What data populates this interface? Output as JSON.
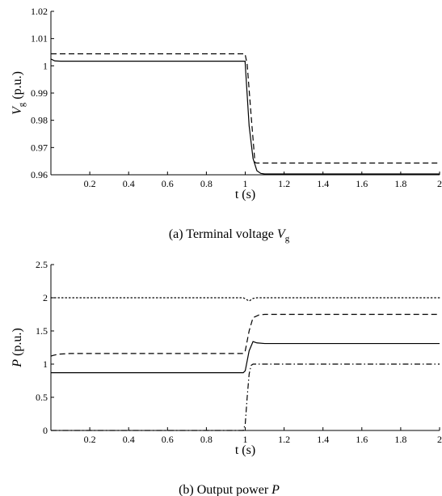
{
  "chart_data": [
    {
      "type": "line",
      "caption_prefix": "(a) Terminal voltage ",
      "caption_symbol": "V",
      "caption_sub": "g",
      "xlabel": "t (s)",
      "ylabel_symbol": "V",
      "ylabel_sub": "g",
      "ylabel_unit": " (p.u.)",
      "xlim": [
        0,
        2
      ],
      "ylim": [
        0.96,
        1.02
      ],
      "xticks": [
        0.2,
        0.4,
        0.6,
        0.8,
        1,
        1.2,
        1.4,
        1.6,
        1.8,
        2
      ],
      "xtick_labels": [
        "0.2",
        "0.4",
        "0.6",
        "0.8",
        "1",
        "1.2",
        "1.4",
        "1.6",
        "1.8",
        "2"
      ],
      "yticks": [
        0.96,
        0.97,
        0.98,
        0.99,
        1,
        1.01,
        1.02
      ],
      "ytick_labels": [
        "0.96",
        "0.97",
        "0.98",
        "0.99",
        "1",
        "1.01",
        "1.02"
      ],
      "series": [
        {
          "style": "solid",
          "x": [
            0,
            0.02,
            0.05,
            0.1,
            0.5,
            0.999,
            1.02,
            1.04,
            1.06,
            1.08,
            1.1,
            1.2,
            2
          ],
          "y": [
            1.0025,
            1.0018,
            1.0017,
            1.0017,
            1.0017,
            1.0017,
            0.978,
            0.966,
            0.9615,
            0.9605,
            0.9603,
            0.9603,
            0.9603
          ]
        },
        {
          "style": "dashed",
          "x": [
            0,
            0.5,
            0.999,
            1.01,
            1.03,
            1.05,
            1.06,
            1.1,
            2
          ],
          "y": [
            1.0044,
            1.0044,
            1.0044,
            1.0005,
            0.982,
            0.9645,
            0.9643,
            0.9643,
            0.9643
          ]
        }
      ]
    },
    {
      "type": "line",
      "caption_prefix": "(b) Output power ",
      "caption_symbol": "P",
      "caption_sub": "",
      "xlabel": "t (s)",
      "ylabel_symbol": "P",
      "ylabel_sub": "",
      "ylabel_unit": " (p.u.)",
      "xlim": [
        0,
        2
      ],
      "ylim": [
        0,
        2.5
      ],
      "xticks": [
        0.2,
        0.4,
        0.6,
        0.8,
        1,
        1.2,
        1.4,
        1.6,
        1.8,
        2
      ],
      "xtick_labels": [
        "0.2",
        "0.4",
        "0.6",
        "0.8",
        "1",
        "1.2",
        "1.4",
        "1.6",
        "1.8",
        "2"
      ],
      "yticks": [
        0,
        0.5,
        1,
        1.5,
        2,
        2.5
      ],
      "ytick_labels": [
        "0",
        "0.5",
        "1",
        "1.5",
        "2",
        "2.5"
      ],
      "series": [
        {
          "style": "dotted",
          "x": [
            0,
            0.99,
            1.0,
            1.02,
            1.04,
            1.06,
            2
          ],
          "y": [
            2.0,
            2.0,
            1.985,
            1.95,
            1.99,
            2.0,
            2.0
          ]
        },
        {
          "style": "dashed",
          "x": [
            0,
            0.01,
            0.04,
            0.1,
            0.99,
            1.0,
            1.02,
            1.04,
            1.07,
            1.1,
            2
          ],
          "y": [
            1.12,
            1.13,
            1.15,
            1.16,
            1.16,
            1.2,
            1.5,
            1.7,
            1.74,
            1.75,
            1.75
          ]
        },
        {
          "style": "solid",
          "x": [
            0,
            0.99,
            1.0,
            1.02,
            1.04,
            1.06,
            1.1,
            1.2,
            2
          ],
          "y": [
            0.87,
            0.87,
            0.9,
            1.2,
            1.34,
            1.32,
            1.31,
            1.31,
            1.31
          ]
        },
        {
          "style": "dashdot",
          "x": [
            0,
            0.99,
            1.0,
            1.01,
            1.02,
            1.03,
            1.04,
            2
          ],
          "y": [
            0.0,
            0.0,
            0.1,
            0.5,
            0.85,
            0.98,
            1.0,
            1.0
          ]
        }
      ]
    }
  ]
}
